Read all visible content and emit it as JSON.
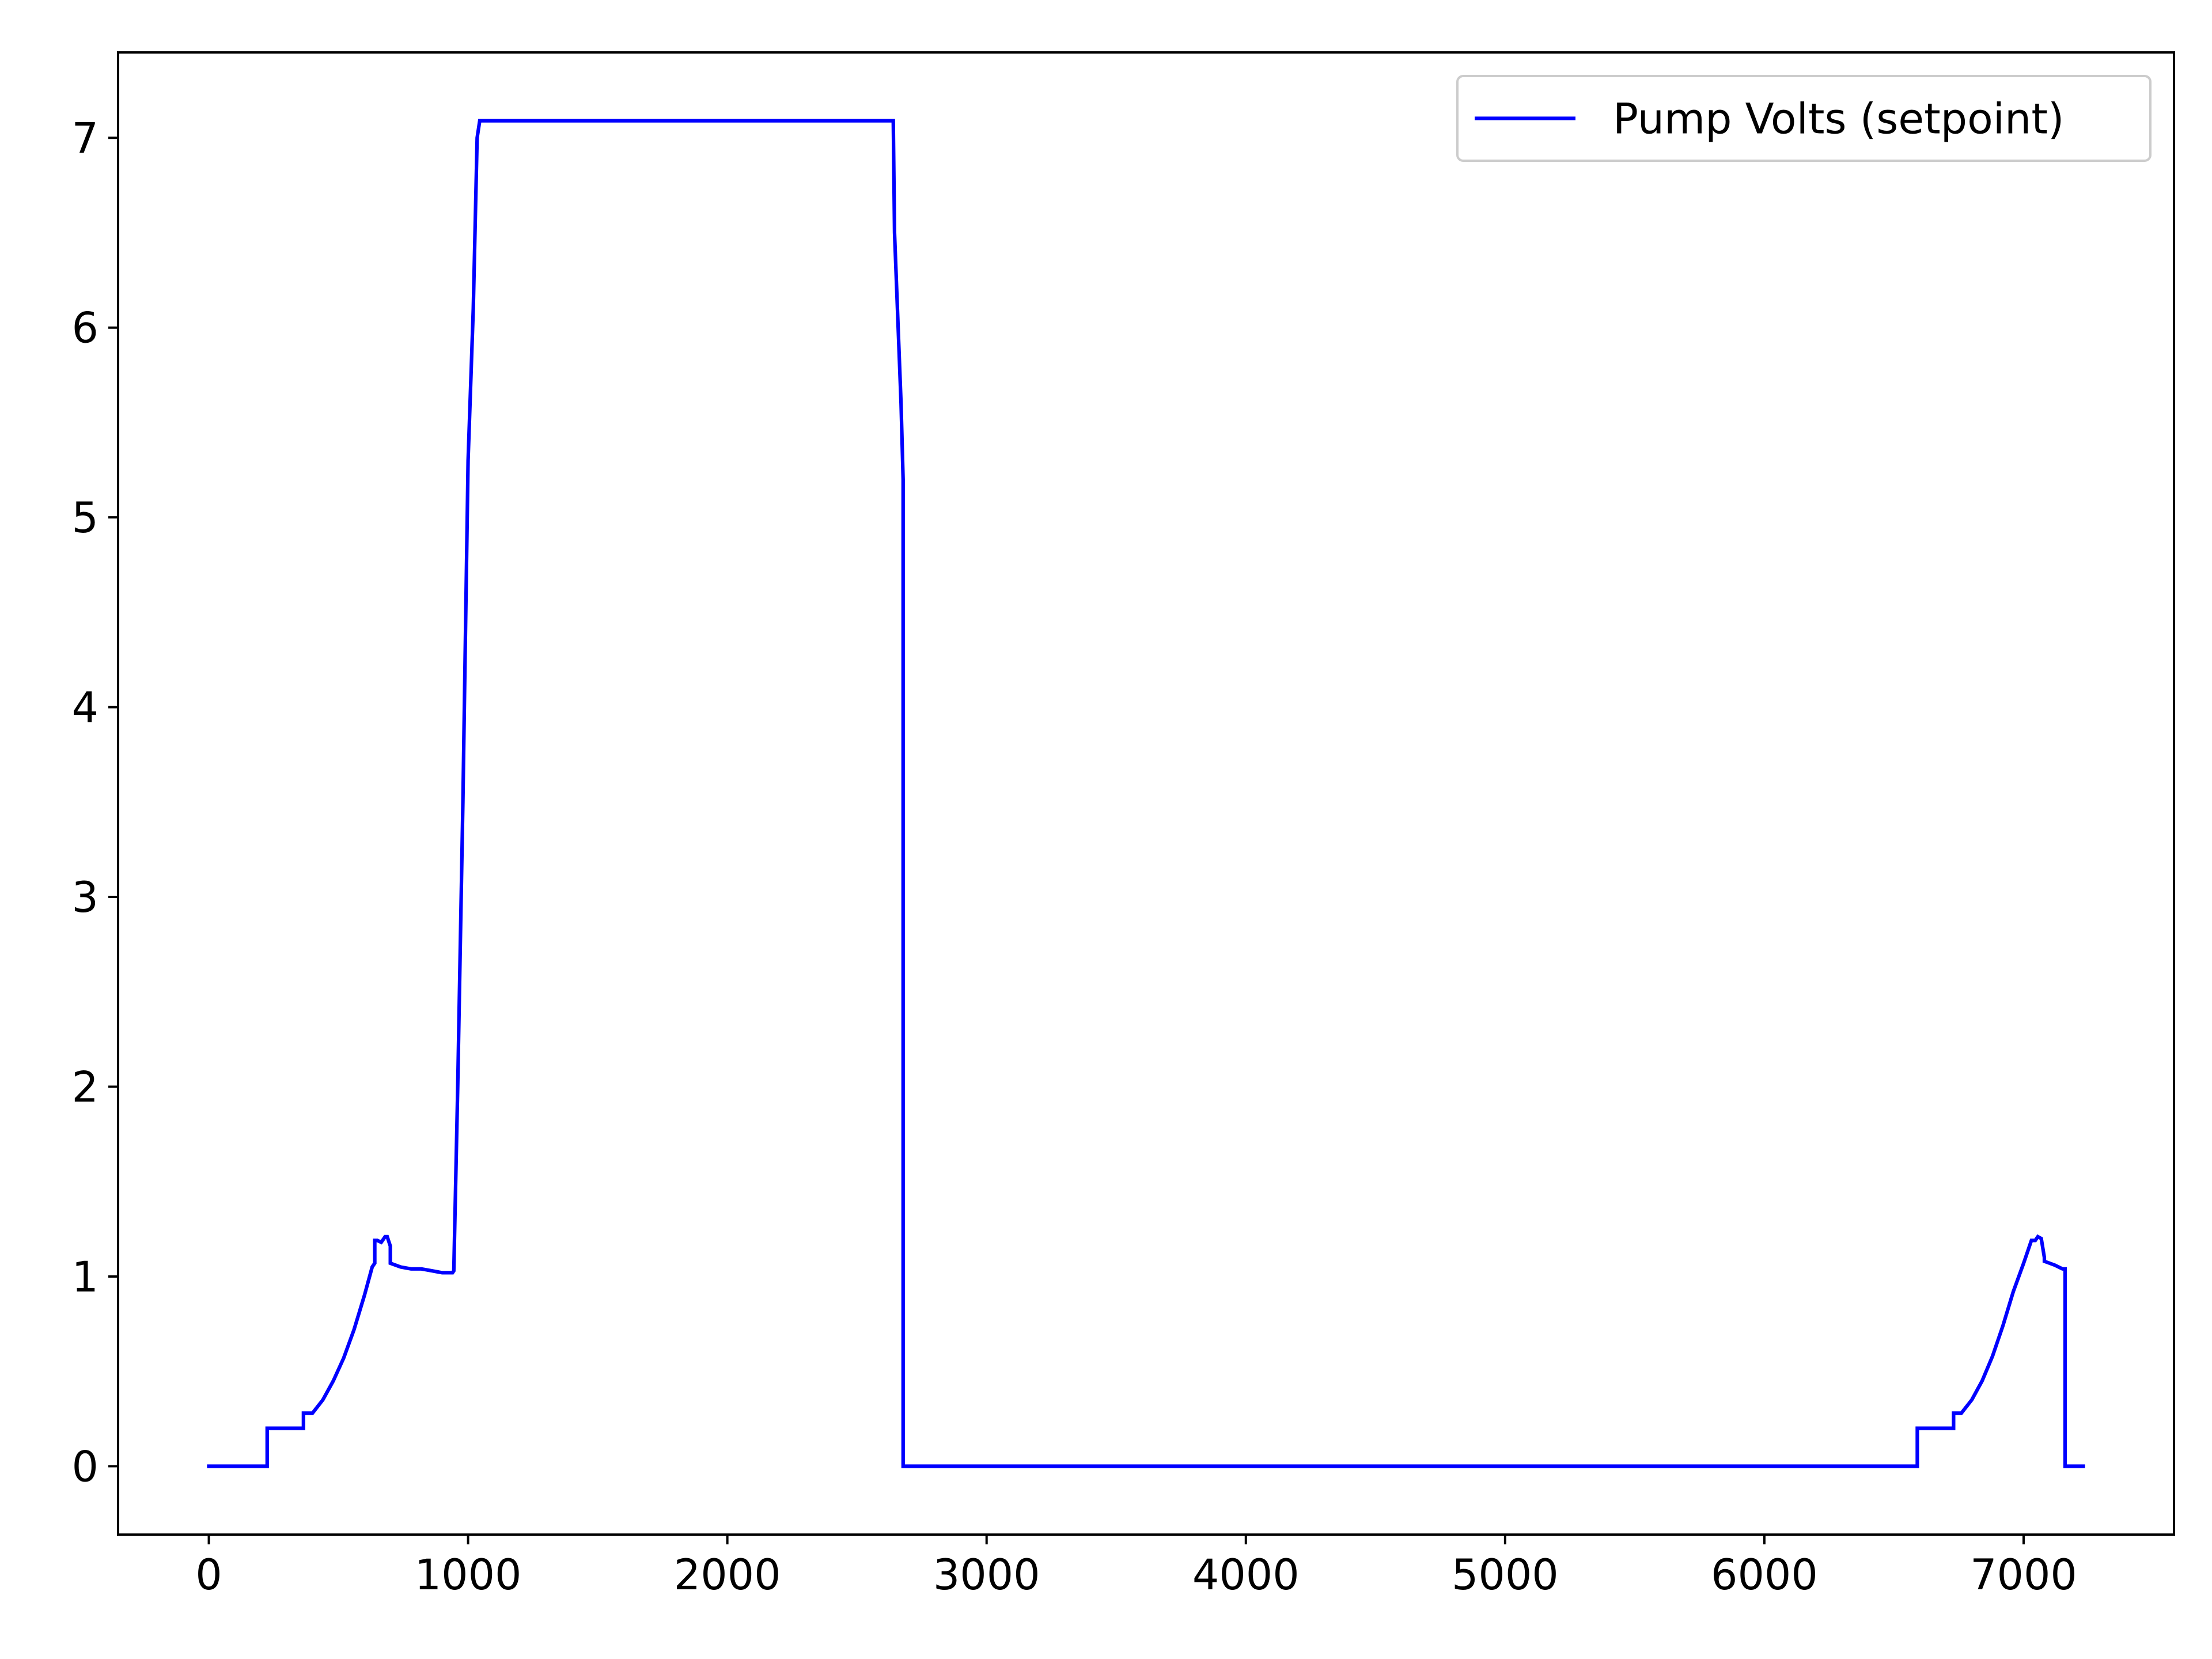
{
  "chart_data": {
    "type": "line",
    "title": "",
    "xlabel": "",
    "ylabel": "",
    "xlim": [
      -350,
      7580
    ],
    "ylim": [
      -0.36,
      7.45
    ],
    "xticks": [
      0,
      1000,
      2000,
      3000,
      4000,
      5000,
      6000,
      7000
    ],
    "xtick_labels": [
      "0",
      "1000",
      "2000",
      "3000",
      "4000",
      "5000",
      "6000",
      "7000"
    ],
    "yticks": [
      0,
      1,
      2,
      3,
      4,
      5,
      6,
      7
    ],
    "ytick_labels": [
      "0",
      "1",
      "2",
      "3",
      "4",
      "5",
      "6",
      "7"
    ],
    "grid": false,
    "legend_position": "upper right",
    "series": [
      {
        "name": "Pump Volts (setpoint)",
        "color": "#0000ff",
        "x": [
          0,
          225,
          225,
          365,
          365,
          400,
          440,
          480,
          520,
          560,
          600,
          630,
          640,
          640,
          650,
          665,
          680,
          688,
          700,
          700,
          740,
          780,
          820,
          860,
          900,
          940,
          945,
          960,
          980,
          1000,
          1020,
          1035,
          1045,
          1050,
          2640,
          2645,
          2670,
          2678,
          2678,
          2680,
          2680,
          6590,
          6590,
          6730,
          6730,
          6760,
          6800,
          6840,
          6880,
          6920,
          6960,
          7000,
          7030,
          7040,
          7045,
          7055,
          7068,
          7080,
          7080,
          7100,
          7120,
          7150,
          7150,
          7160,
          7160,
          7230
        ],
        "y": [
          0,
          0,
          0.2,
          0.2,
          0.28,
          0.28,
          0.35,
          0.45,
          0.57,
          0.72,
          0.9,
          1.05,
          1.07,
          1.19,
          1.19,
          1.18,
          1.21,
          1.21,
          1.16,
          1.07,
          1.05,
          1.04,
          1.04,
          1.03,
          1.02,
          1.02,
          1.03,
          2.0,
          3.5,
          5.3,
          6.1,
          7.0,
          7.09,
          7.09,
          7.09,
          6.5,
          5.6,
          5.2,
          0,
          0,
          0,
          0,
          0.2,
          0.2,
          0.28,
          0.28,
          0.35,
          0.45,
          0.58,
          0.74,
          0.92,
          1.07,
          1.19,
          1.19,
          1.19,
          1.21,
          1.2,
          1.1,
          1.08,
          1.07,
          1.06,
          1.04,
          1.04,
          1.04,
          0,
          0
        ]
      }
    ]
  }
}
